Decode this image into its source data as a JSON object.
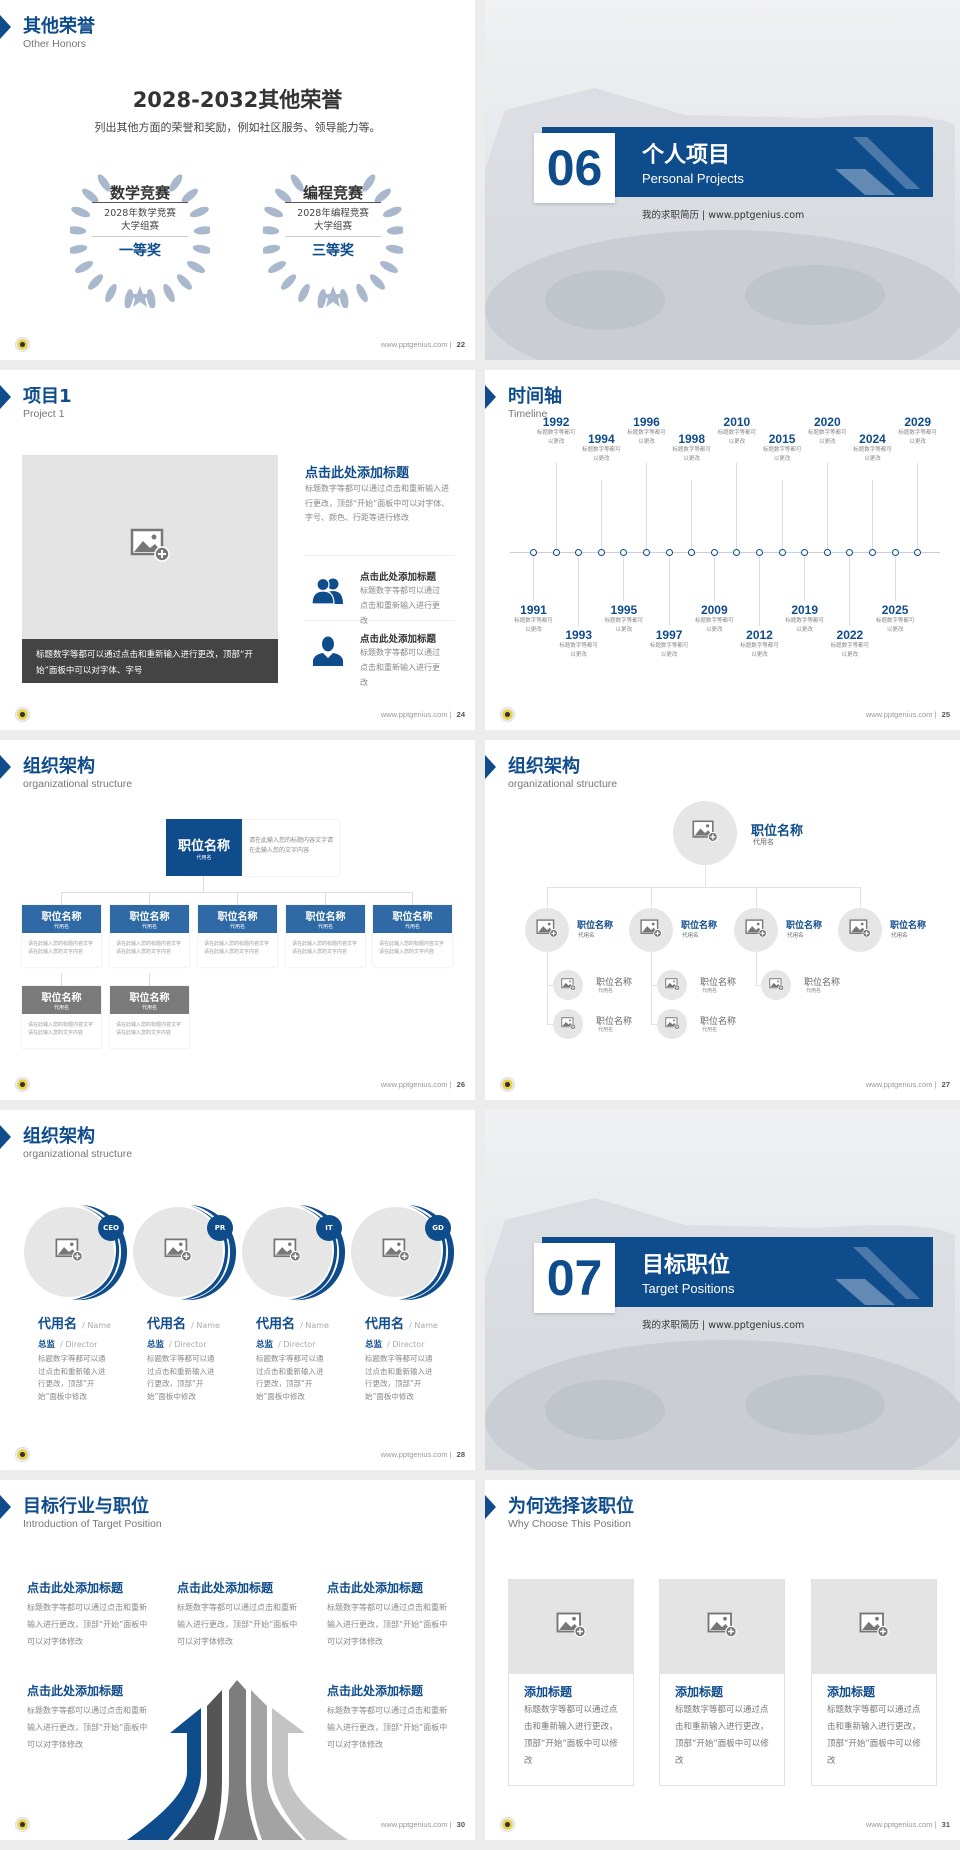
{
  "colors": {
    "accent": "#0f4c8c",
    "background": "#ececec",
    "gray_box": "#7a7a7a",
    "placeholder": "#e4e4e4"
  },
  "footer_url": "www.pptgenius.com",
  "slide22": {
    "title": "其他荣誉",
    "subtitle": "Other Honors",
    "heading": "2028-2032其他荣誉",
    "desc": "列出其他方面的荣誉和奖励，例如社区服务、领导能力等。",
    "page": "22",
    "awards": [
      {
        "title": "数学竞赛",
        "line1": "2028年数学竞赛",
        "line2": "大学组赛",
        "prize": "一等奖"
      },
      {
        "title": "编程竞赛",
        "line1": "2028年编程竞赛",
        "line2": "大学组赛",
        "prize": "三等奖"
      }
    ]
  },
  "cover06": {
    "number": "06",
    "title": "个人项目",
    "subtitle": "Personal Projects",
    "tagline": "我的求职简历 | www.pptgenius.com"
  },
  "slide24": {
    "title": "项目1",
    "subtitle": "Project 1",
    "caption": "标题数字等都可以通过点击和重新输入进行更改，顶部“开始”面板中可以对字体、字号",
    "heading": "点击此处添加标题",
    "text": "标题数字等都可以通过点击和重新输入进行更改，顶部“开始”面板中可以对字体、字号、颜色、行距等进行修改",
    "items": [
      {
        "icon": "group-icon",
        "title": "点击此处添加标题",
        "text": "标题数字等都可以通过点击和重新输入进行更改"
      },
      {
        "icon": "person-icon",
        "title": "点击此处添加标题",
        "text": "标题数字等都可以通过点击和重新输入进行更改"
      }
    ],
    "page": "24"
  },
  "slide25": {
    "title": "时间轴",
    "subtitle": "Timeline",
    "page": "25",
    "desc": "标题数字等都可以更改",
    "events": [
      {
        "year": "1991",
        "pos": "bottom"
      },
      {
        "year": "1992",
        "pos": "top"
      },
      {
        "year": "1993",
        "pos": "bottom"
      },
      {
        "year": "1994",
        "pos": "top"
      },
      {
        "year": "1995",
        "pos": "bottom"
      },
      {
        "year": "1996",
        "pos": "top"
      },
      {
        "year": "1997",
        "pos": "bottom"
      },
      {
        "year": "1998",
        "pos": "top"
      },
      {
        "year": "2009",
        "pos": "bottom"
      },
      {
        "year": "2010",
        "pos": "top"
      },
      {
        "year": "2012",
        "pos": "bottom"
      },
      {
        "year": "2015",
        "pos": "top"
      },
      {
        "year": "2019",
        "pos": "bottom"
      },
      {
        "year": "2020",
        "pos": "top"
      },
      {
        "year": "2022",
        "pos": "bottom"
      },
      {
        "year": "2024",
        "pos": "top"
      },
      {
        "year": "2025",
        "pos": "bottom"
      },
      {
        "year": "2029",
        "pos": "top"
      }
    ]
  },
  "slide26": {
    "title": "组织架构",
    "subtitle": "organizational structure",
    "page": "26",
    "top": {
      "name": "职位名称",
      "alias": "代用名",
      "text": "请在此输入您的标题内容文字请在此输入您的文字内容"
    },
    "boxes": [
      {
        "name": "职位名称",
        "alias": "代用名",
        "text": "请在此输入您的标题内容文字请在此输入您的文字内容"
      },
      {
        "name": "职位名称",
        "alias": "代用名",
        "text": "请在此输入您的标题内容文字请在此输入您的文字内容"
      },
      {
        "name": "职位名称",
        "alias": "代用名",
        "text": "请在此输入您的标题内容文字请在此输入您的文字内容"
      },
      {
        "name": "职位名称",
        "alias": "代用名",
        "text": "请在此输入您的标题内容文字请在此输入您的文字内容"
      },
      {
        "name": "职位名称",
        "alias": "代用名",
        "text": "请在此输入您的标题内容文字请在此输入您的文字内容"
      }
    ],
    "sub_boxes": [
      {
        "name": "职位名称",
        "alias": "代用名",
        "text": "请在此输入您的标题内容文字请在此输入您的文字内容"
      },
      {
        "name": "职位名称",
        "alias": "代用名",
        "text": "请在此输入您的标题内容文字请在此输入您的文字内容"
      }
    ]
  },
  "slide27": {
    "title": "组织架构",
    "subtitle": "organizational structure",
    "page": "27",
    "top": {
      "name": "职位名称",
      "alias": "代用名"
    },
    "mid": [
      {
        "name": "职位名称",
        "alias": "代用名"
      },
      {
        "name": "职位名称",
        "alias": "代用名"
      },
      {
        "name": "职位名称",
        "alias": "代用名"
      },
      {
        "name": "职位名称",
        "alias": "代用名"
      }
    ],
    "small": [
      {
        "name": "职位名称",
        "alias": "代用名"
      },
      {
        "name": "职位名称",
        "alias": "代用名"
      },
      {
        "name": "职位名称",
        "alias": "代用名"
      },
      {
        "name": "职位名称",
        "alias": "代用名"
      },
      {
        "name": "职位名称",
        "alias": "代用名"
      }
    ]
  },
  "slide28": {
    "title": "组织架构",
    "subtitle": "organizational structure",
    "page": "28",
    "members": [
      {
        "badge": "CEO",
        "name": "代用名",
        "name_en": "/ Name",
        "role": "总监",
        "role_en": "/  Director",
        "text": "标题数字等都可以通过点击和重新输入进行更改，顶部“开始”面板中修改"
      },
      {
        "badge": "PR",
        "name": "代用名",
        "name_en": "/ Name",
        "role": "总监",
        "role_en": "/  Director",
        "text": "标题数字等都可以通过点击和重新输入进行更改，顶部“开始”面板中修改"
      },
      {
        "badge": "IT",
        "name": "代用名",
        "name_en": "/ Name",
        "role": "总监",
        "role_en": "/  Director",
        "text": "标题数字等都可以通过点击和重新输入进行更改，顶部“开始”面板中修改"
      },
      {
        "badge": "GD",
        "name": "代用名",
        "name_en": "/ Name",
        "role": "总监",
        "role_en": "/  Director",
        "text": "标题数字等都可以通过点击和重新输入进行更改，顶部“开始”面板中修改"
      }
    ]
  },
  "cover07": {
    "number": "07",
    "title": "目标职位",
    "subtitle": "Target Positions",
    "tagline": "我的求职简历 | www.pptgenius.com"
  },
  "slide30": {
    "title": "目标行业与职位",
    "subtitle": "Introduction of Target Position",
    "page": "30",
    "blocks": [
      {
        "title": "点击此处添加标题",
        "text": "标题数字等都可以通过点击和重新输入进行更改，顶部“开始”面板中可以对字体修改"
      },
      {
        "title": "点击此处添加标题",
        "text": "标题数字等都可以通过点击和重新输入进行更改，顶部“开始”面板中可以对字体修改"
      },
      {
        "title": "点击此处添加标题",
        "text": "标题数字等都可以通过点击和重新输入进行更改，顶部“开始”面板中可以对字体修改"
      },
      {
        "title": "点击此处添加标题",
        "text": "标题数字等都可以通过点击和重新输入进行更改，顶部“开始”面板中可以对字体修改"
      },
      {
        "title": "点击此处添加标题",
        "text": "标题数字等都可以通过点击和重新输入进行更改，顶部“开始”面板中可以对字体修改"
      }
    ]
  },
  "slide31": {
    "title": "为何选择该职位",
    "subtitle": "Why Choose This Position",
    "page": "31",
    "cards": [
      {
        "title": "添加标题",
        "text": "标题数字等都可以通过点击和重新输入进行更改，顶部“开始”面板中可以修改"
      },
      {
        "title": "添加标题",
        "text": "标题数字等都可以通过点击和重新输入进行更改，顶部“开始”面板中可以修改"
      },
      {
        "title": "添加标题",
        "text": "标题数字等都可以通过点击和重新输入进行更改，顶部“开始”面板中可以修改"
      }
    ]
  }
}
